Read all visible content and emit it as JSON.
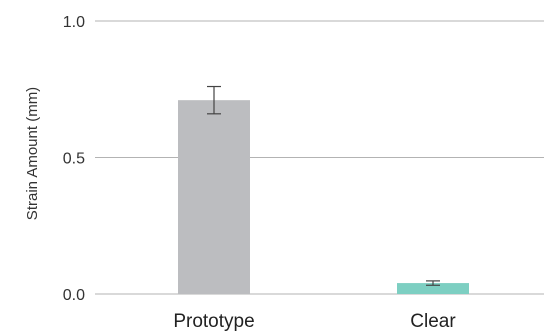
{
  "chart_data": {
    "type": "bar",
    "title": "",
    "xlabel": "",
    "ylabel": "Strain Amount (mm)",
    "ylim": [
      0,
      1.0
    ],
    "yticks": [
      {
        "value": 0.0,
        "label": "0.0"
      },
      {
        "value": 0.5,
        "label": "0.5"
      },
      {
        "value": 1.0,
        "label": "1.0"
      }
    ],
    "grid": true,
    "categories": [
      "Prototype",
      "Clear"
    ],
    "values": [
      0.71,
      0.04
    ],
    "errors": [
      0.05,
      0.008
    ],
    "colors": [
      "#bcbdc0",
      "#7dcfc2"
    ]
  }
}
